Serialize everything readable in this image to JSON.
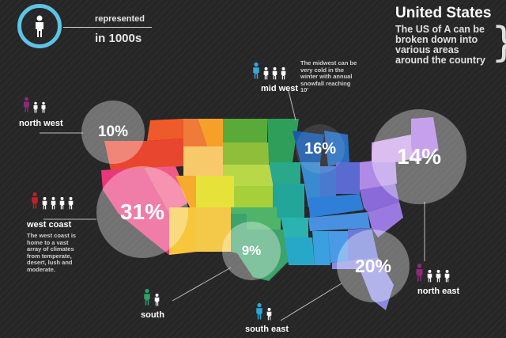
{
  "legend": {
    "line1": "represented",
    "line2": "in 1000s",
    "icon": "person-icon",
    "ring_color": "#5fc3e6"
  },
  "header": {
    "title": "United States",
    "subtitle": "The US of A can be broken down into various areas around the country"
  },
  "regions": {
    "north_west": {
      "label": "north west",
      "percent": "10%",
      "color": "#8b2a7a",
      "people_count": 3
    },
    "west_coast": {
      "label": "west coast",
      "percent": "31%",
      "color": "#c0202a",
      "people_count": 5,
      "note": "The west coast is home to a vast array of climates from temperate, desert, lush and moderate."
    },
    "south": {
      "label": "south",
      "percent": "9%",
      "color": "#2e9e6b",
      "people_count": 2
    },
    "south_east": {
      "label": "south east",
      "percent": "20%",
      "color": "#2aa8d8",
      "people_count": 2
    },
    "mid_west": {
      "label": "mid west",
      "percent": "16%",
      "color": "#3aa6d8",
      "people_count": 4,
      "note": "The midwest can be very cold in the winter with annual snowfall reaching 10'"
    },
    "north_east": {
      "label": "north east",
      "percent": "14%",
      "color": "#8b2a7a",
      "people_count": 4
    }
  },
  "icons": {
    "person": "person-icon",
    "brace": "right-brace-icon"
  }
}
